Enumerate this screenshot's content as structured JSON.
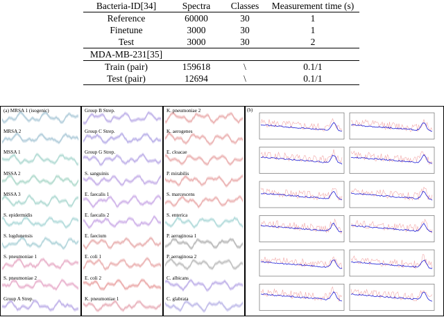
{
  "table": {
    "header": [
      "Bacteria-ID[34]",
      "Spectra",
      "Classes",
      "Measurement time (s)"
    ],
    "rows": [
      [
        "Reference",
        "60000",
        "30",
        "1"
      ],
      [
        "Finetune",
        "3000",
        "30",
        "1"
      ],
      [
        "Test",
        "3000",
        "30",
        "2"
      ]
    ],
    "section2_title": "MDA-MB-231[35]",
    "rows2": [
      [
        "Train (pair)",
        "159618",
        "\\",
        "0.1/1"
      ],
      [
        "Test (pair)",
        "12694",
        "\\",
        "0.1/1"
      ]
    ]
  },
  "figure": {
    "panel_a_label": "(a)",
    "panel_b_label": "(b)",
    "column1": [
      "MRSA 1 (isogenic)",
      "MRSA 2",
      "MSSA 1",
      "MSSA 2",
      "MSSA 3",
      "S. epidermidis",
      "S. lugdunensis",
      "S. pneumoniae 1",
      "S. pneumoniae 2",
      "Group A Strep."
    ],
    "column2": [
      "Group B Strep.",
      "Group C Strep.",
      "Group G Strep.",
      "S. sanguinis",
      "E. faecalis 1",
      "E. faecalis 2",
      "E. faecium",
      "E. coli 1",
      "E. coli 2",
      "K. pneumoniae 1"
    ],
    "column3": [
      "K. pneumoniae 2",
      "K. aerogenes",
      "E. cloacae",
      "P. mirabilis",
      "S. marcescens",
      "S. enterica",
      "P. aeruginosa 1",
      "P. aeruginosa 2",
      "C. albicans",
      "C. glabrata"
    ],
    "colors": {
      "column1": [
        "#a9c7d6",
        "#a9c7d6",
        "#a9d6cf",
        "#a9d6c8",
        "#a9d6cf",
        "#a9d6d6",
        "#a9d0d6",
        "#e6a9c4",
        "#e6a9c8",
        "#b9a9e6"
      ],
      "column2": [
        "#b8a9e6",
        "#b3a9e6",
        "#b9a9e6",
        "#c0a9e6",
        "#c9a9e6",
        "#c9a9e6",
        "#e6a9a9",
        "#e8a9a9",
        "#e8a0a0",
        "#e6a9b4"
      ],
      "column3": [
        "#e8a8a8",
        "#e8a8a8",
        "#e8a8a8",
        "#e8a8a8",
        "#e8a8a8",
        "#a9d6d6",
        "#b0b0b0",
        "#b8b8b8",
        "#b9a9e6",
        "#b9b3e6"
      ],
      "spectrum_blue": "#1b1bd6",
      "spectrum_pink": "#f2a7a7"
    }
  }
}
